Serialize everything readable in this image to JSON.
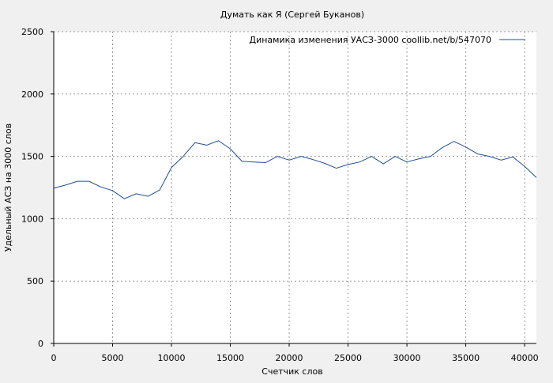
{
  "chart_data": {
    "type": "line",
    "title": "Думать как Я (Сергей Буканов)",
    "xlabel": "Счетчик слов",
    "ylabel": "Удельный АСЗ на 3000 слов",
    "xlim": [
      0,
      41000
    ],
    "ylim": [
      0,
      2500
    ],
    "xticks": [
      0,
      5000,
      10000,
      15000,
      20000,
      25000,
      30000,
      35000,
      40000
    ],
    "yticks": [
      0,
      500,
      1000,
      1500,
      2000,
      2500
    ],
    "grid": true,
    "legend_position": "top-right",
    "series": [
      {
        "name": "Динамика изменения УАСЗ-3000  coollib.net/b/547070",
        "color": "#1f4e9c",
        "x": [
          0,
          1000,
          2000,
          3000,
          4000,
          5000,
          6000,
          7000,
          8000,
          9000,
          10000,
          11000,
          12000,
          13000,
          14000,
          15000,
          16000,
          17000,
          18000,
          19000,
          20000,
          21000,
          22000,
          23000,
          24000,
          25000,
          26000,
          27000,
          28000,
          29000,
          30000,
          31000,
          32000,
          33000,
          34000,
          35000,
          36000,
          37000,
          38000,
          39000,
          40000,
          41000
        ],
        "y": [
          1245,
          1270,
          1300,
          1300,
          1255,
          1225,
          1160,
          1200,
          1180,
          1230,
          1410,
          1500,
          1610,
          1590,
          1625,
          1560,
          1460,
          1455,
          1450,
          1500,
          1470,
          1500,
          1475,
          1445,
          1405,
          1435,
          1455,
          1500,
          1440,
          1500,
          1455,
          1480,
          1500,
          1570,
          1620,
          1575,
          1520,
          1500,
          1470,
          1495,
          1420,
          1330
        ]
      }
    ]
  }
}
